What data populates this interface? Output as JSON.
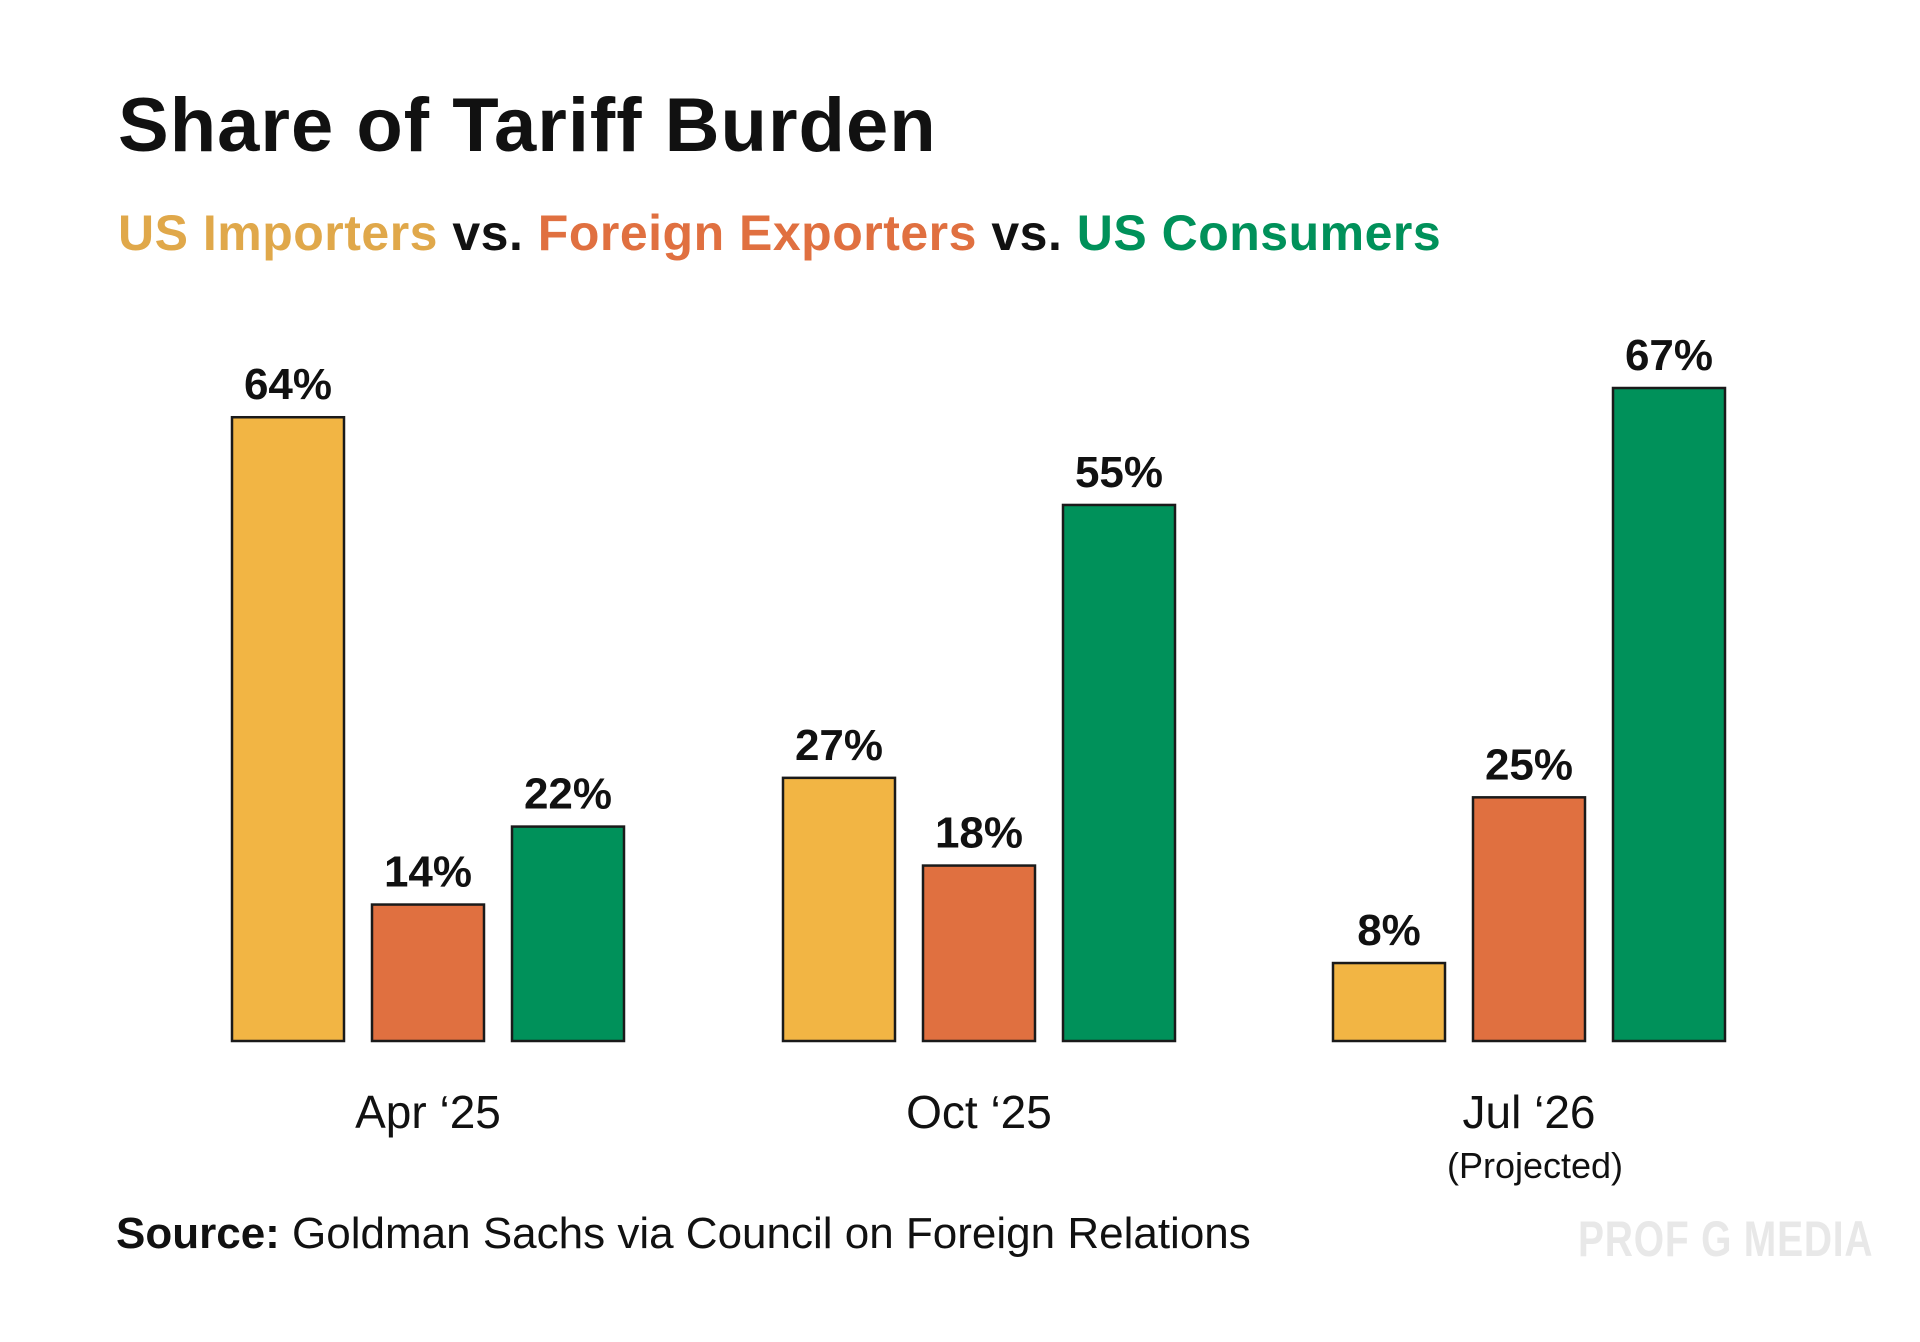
{
  "chart_data": {
    "type": "bar",
    "title": "Share of Tariff Burden",
    "subtitle": {
      "parts": [
        "US Importers",
        "vs.",
        "Foreign Exporters",
        "vs.",
        "US Consumers"
      ]
    },
    "categories": [
      "Apr ‘25",
      "Oct ‘25",
      "Jul ‘26"
    ],
    "category_notes": [
      "",
      "",
      "(Projected)"
    ],
    "series": [
      {
        "name": "US Importers",
        "color": "#F2B544",
        "values": [
          64,
          27,
          8
        ]
      },
      {
        "name": "Foreign Exporters",
        "color": "#E07040",
        "values": [
          14,
          18,
          25
        ]
      },
      {
        "name": "US Consumers",
        "color": "#00915A",
        "values": [
          22,
          55,
          67
        ]
      }
    ],
    "value_suffix": "%",
    "ylim": [
      0,
      67
    ],
    "xlabel": "",
    "ylabel": "",
    "grid": false
  },
  "colors": {
    "importers": "#E0A84A",
    "exporters": "#E07040",
    "consumers": "#00915A"
  },
  "footer": {
    "source_label": "Source:",
    "source_text": " Goldman Sachs via Council on Foreign Relations",
    "watermark": "PROF G MEDIA"
  }
}
